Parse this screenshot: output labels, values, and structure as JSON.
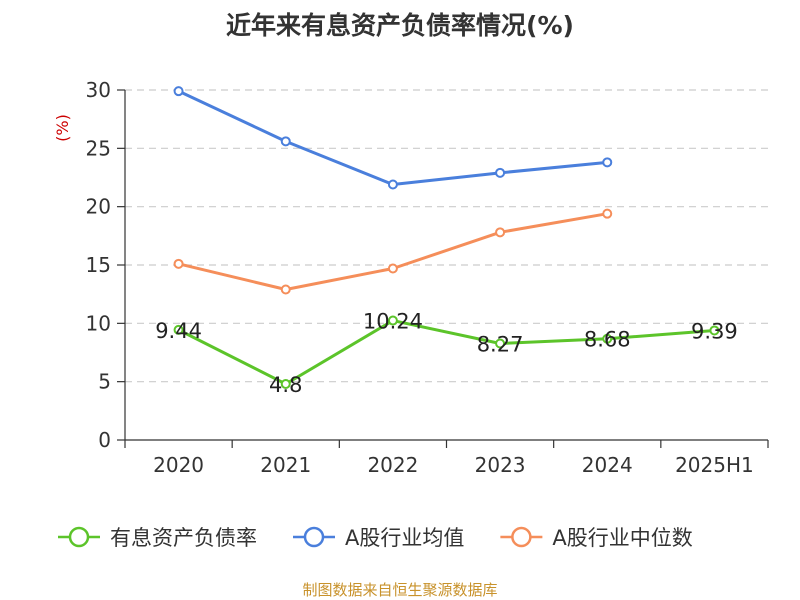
{
  "chart_data": {
    "type": "line",
    "title": "近年来有息资产负债率情况(%)",
    "ylabel": "(%)",
    "xlabel": "",
    "categories": [
      "2020",
      "2021",
      "2022",
      "2023",
      "2024",
      "2025H1"
    ],
    "ylim": [
      0,
      30
    ],
    "yticks": [
      "0",
      "5",
      "10",
      "15",
      "20",
      "25",
      "30"
    ],
    "grid": true,
    "legend_position": "bottom",
    "series": [
      {
        "name": "有息资产负债率",
        "color": "#5cc42a",
        "values": [
          9.44,
          4.8,
          10.24,
          8.27,
          8.68,
          9.39
        ],
        "labels": [
          "9.44",
          "4.8",
          "10.24",
          "8.27",
          "8.68",
          "9.39"
        ]
      },
      {
        "name": "A股行业均值",
        "color": "#4a7fdc",
        "values": [
          29.9,
          25.6,
          21.9,
          22.9,
          23.8,
          null
        ]
      },
      {
        "name": "A股行业中位数",
        "color": "#f58e5a",
        "values": [
          15.1,
          12.9,
          14.7,
          17.8,
          19.4,
          null
        ]
      }
    ]
  },
  "source": "制图数据来自恒生聚源数据库"
}
